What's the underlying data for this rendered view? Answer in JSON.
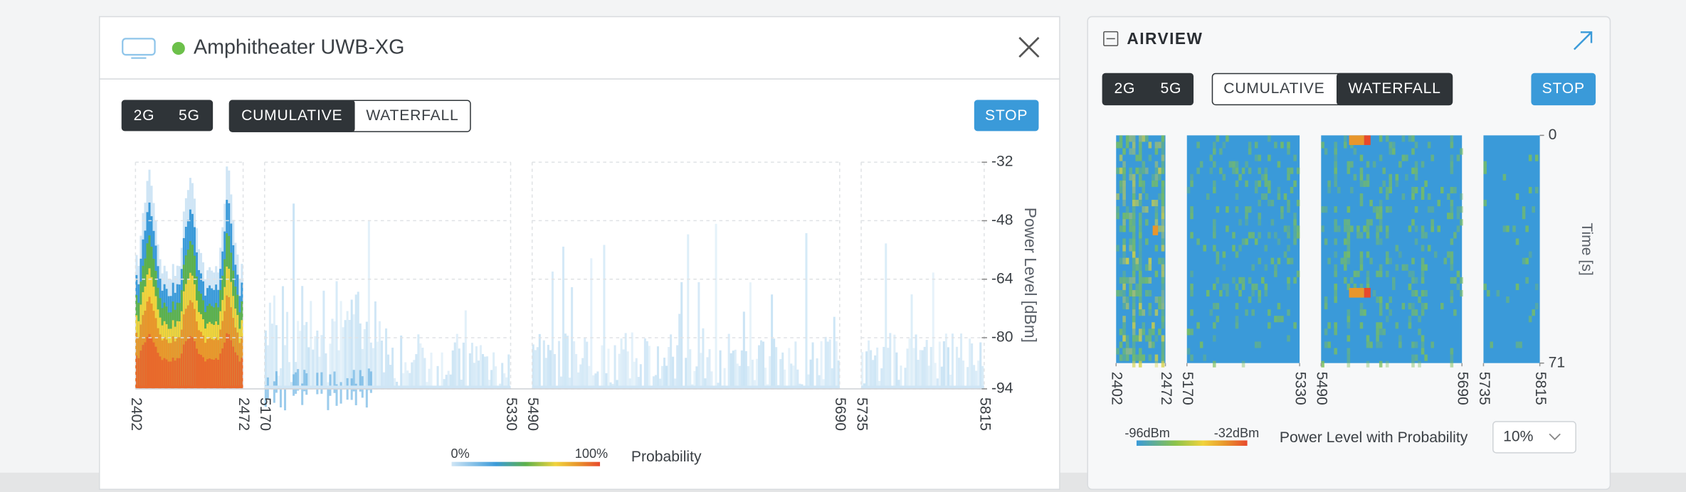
{
  "device_panel": {
    "title": "Amphitheater UWB-XG",
    "band_buttons": [
      "2G",
      "5G"
    ],
    "view_buttons": [
      "CUMULATIVE",
      "WATERFALL"
    ],
    "stop_button": "STOP",
    "chart_data": {
      "type": "heatmap",
      "ylabel": "Power Level [dBm]",
      "ylim": [
        -32,
        -94
      ],
      "yticks": [
        -32,
        -48,
        -64,
        -80,
        -94
      ],
      "xticks": [
        2402,
        2472,
        5170,
        5330,
        5490,
        5690,
        5735,
        5815
      ],
      "legend": {
        "min_label": "0%",
        "max_label": "100%",
        "title": "Probability"
      }
    }
  },
  "airview_panel": {
    "title": "AIRVIEW",
    "band_buttons": [
      "2G",
      "5G"
    ],
    "view_buttons": [
      "CUMULATIVE",
      "WATERFALL"
    ],
    "stop_button": "STOP",
    "chart_data": {
      "type": "waterfall",
      "ylabel": "Time [s]",
      "ylim": [
        0,
        71
      ],
      "yticks": [
        0,
        71
      ],
      "xticks": [
        2402,
        2472,
        5170,
        5330,
        5490,
        5690,
        5735,
        5815
      ],
      "legend": {
        "min_label": "-96dBm",
        "max_label": "-32dBm"
      }
    },
    "probability_label": "Power Level with Probability",
    "probability_select": "10%"
  }
}
